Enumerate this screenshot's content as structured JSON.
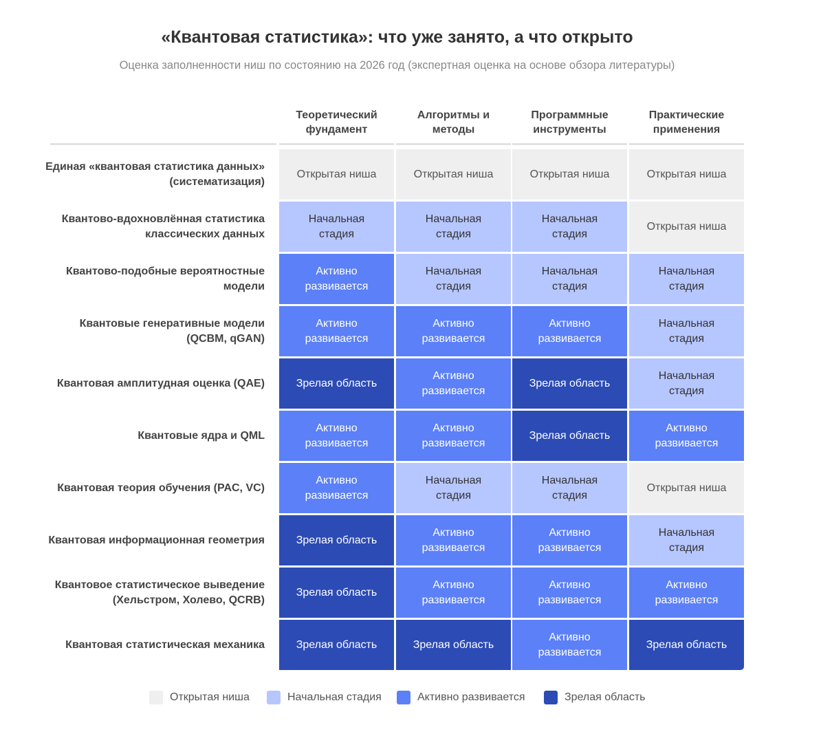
{
  "chart_data": {
    "type": "heatmap",
    "title": "«Квантовая статистика»: что уже занято, а что открыто",
    "subtitle": "Оценка заполненности ниш по состоянию на 2026 год (экспертная оценка на основе обзора литературы)",
    "columns": [
      "Теоретический фундамент",
      "Алгоритмы и методы",
      "Программные инструменты",
      "Практические применения"
    ],
    "rows": [
      "Единая «квантовая статистика данных» (систематизация)",
      "Квантово-вдохновлённая статистика классических данных",
      "Квантово-подобные вероятностные модели",
      "Квантовые генеративные модели (QCBM, qGAN)",
      "Квантовая амплитудная оценка (QAE)",
      "Квантовые ядра и QML",
      "Квантовая теория обучения (PAC, VC)",
      "Квантовая информационная геометрия",
      "Квантовое статистическое выведение (Хельстром, Холево, QCRB)",
      "Квантовая статистическая механика"
    ],
    "levels": [
      {
        "label": "Открытая ниша",
        "color": "#efefef",
        "text_color": "#555555"
      },
      {
        "label": "Начальная стадия",
        "color": "#b6c6ff",
        "text_color": "#333333"
      },
      {
        "label": "Активно развивается",
        "color": "#5b80f7",
        "text_color": "#ffffff"
      },
      {
        "label": "Зрелая область",
        "color": "#2c4bb5",
        "text_color": "#ffffff"
      }
    ],
    "values": [
      [
        0,
        0,
        0,
        0
      ],
      [
        1,
        1,
        1,
        0
      ],
      [
        2,
        1,
        1,
        1
      ],
      [
        2,
        2,
        2,
        1
      ],
      [
        3,
        2,
        3,
        1
      ],
      [
        2,
        2,
        3,
        2
      ],
      [
        2,
        1,
        1,
        0
      ],
      [
        3,
        2,
        2,
        1
      ],
      [
        3,
        2,
        2,
        2
      ],
      [
        3,
        3,
        2,
        3
      ]
    ],
    "cell_labels": [
      [
        "Открытая ниша",
        "Открытая ниша",
        "Открытая ниша",
        "Открытая ниша"
      ],
      [
        "Начальная стадия",
        "Начальная стадия",
        "Начальная стадия",
        "Открытая ниша"
      ],
      [
        "Активно развивается",
        "Начальная стадия",
        "Начальная стадия",
        "Начальная стадия"
      ],
      [
        "Активно развивается",
        "Активно развивается",
        "Активно развивается",
        "Начальная стадия"
      ],
      [
        "Зрелая область",
        "Активно развивается",
        "Зрелая область",
        "Начальная стадия"
      ],
      [
        "Активно развивается",
        "Активно развивается",
        "Зрелая область",
        "Активно развивается"
      ],
      [
        "Активно развивается",
        "Начальная стадия",
        "Начальная стадия",
        "Открытая ниша"
      ],
      [
        "Зрелая область",
        "Активно развивается",
        "Активно развивается",
        "Начальная стадия"
      ],
      [
        "Зрелая область",
        "Активно развивается",
        "Активно развивается",
        "Активно развивается"
      ],
      [
        "Зрелая область",
        "Зрелая область",
        "Активно развивается",
        "Зрелая область"
      ]
    ],
    "legend_position": "bottom"
  }
}
